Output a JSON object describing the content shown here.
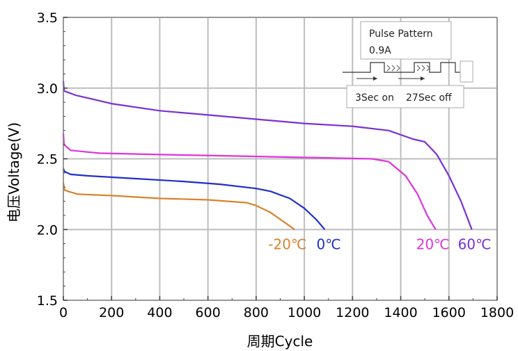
{
  "chart_data": {
    "type": "line",
    "xlabel": "周期Cycle",
    "ylabel": "电压Voltage(V)",
    "xlim": [
      0,
      1800
    ],
    "ylim": [
      1.5,
      3.5
    ],
    "xticks": [
      0,
      200,
      400,
      600,
      800,
      1000,
      1200,
      1400,
      1600,
      1800
    ],
    "yticks": [
      1.5,
      2.0,
      2.5,
      3.0,
      3.5
    ],
    "xtick_labels": [
      "0",
      "200",
      "400",
      "600",
      "800",
      "1000",
      "1200",
      "1400",
      "1600",
      "1800"
    ],
    "ytick_labels": [
      "1.5",
      "2.0",
      "2.5",
      "3.0",
      "3.5"
    ],
    "grid": true,
    "series": [
      {
        "name": "-20℃",
        "color": "#D9822B",
        "points": [
          [
            0,
            2.33
          ],
          [
            5,
            2.28
          ],
          [
            20,
            2.27
          ],
          [
            60,
            2.25
          ],
          [
            200,
            2.24
          ],
          [
            400,
            2.22
          ],
          [
            600,
            2.21
          ],
          [
            760,
            2.19
          ],
          [
            800,
            2.17
          ],
          [
            860,
            2.12
          ],
          [
            910,
            2.06
          ],
          [
            960,
            2.0
          ]
        ]
      },
      {
        "name": "0℃",
        "color": "#1F2FC7",
        "points": [
          [
            0,
            2.43
          ],
          [
            5,
            2.41
          ],
          [
            30,
            2.39
          ],
          [
            100,
            2.38
          ],
          [
            300,
            2.36
          ],
          [
            500,
            2.34
          ],
          [
            650,
            2.32
          ],
          [
            800,
            2.29
          ],
          [
            860,
            2.27
          ],
          [
            940,
            2.22
          ],
          [
            1000,
            2.15
          ],
          [
            1050,
            2.07
          ],
          [
            1085,
            2.0
          ]
        ]
      },
      {
        "name": "20℃",
        "color": "#DD33DD",
        "points": [
          [
            0,
            2.68
          ],
          [
            3,
            2.6
          ],
          [
            30,
            2.56
          ],
          [
            150,
            2.54
          ],
          [
            400,
            2.53
          ],
          [
            700,
            2.52
          ],
          [
            1000,
            2.51
          ],
          [
            1280,
            2.5
          ],
          [
            1350,
            2.48
          ],
          [
            1420,
            2.38
          ],
          [
            1470,
            2.25
          ],
          [
            1510,
            2.1
          ],
          [
            1545,
            2.0
          ]
        ]
      },
      {
        "name": "60℃",
        "color": "#7B2FD6",
        "points": [
          [
            0,
            3.05
          ],
          [
            3,
            2.98
          ],
          [
            50,
            2.95
          ],
          [
            200,
            2.89
          ],
          [
            400,
            2.84
          ],
          [
            600,
            2.81
          ],
          [
            800,
            2.78
          ],
          [
            1000,
            2.75
          ],
          [
            1200,
            2.73
          ],
          [
            1350,
            2.7
          ],
          [
            1450,
            2.64
          ],
          [
            1500,
            2.62
          ],
          [
            1550,
            2.53
          ],
          [
            1600,
            2.38
          ],
          [
            1650,
            2.2
          ],
          [
            1695,
            2.0
          ]
        ]
      }
    ],
    "inset": {
      "title": "Pulse Pattern",
      "current": "0.9A",
      "on_label": "3Sec on",
      "off_label": "27Sec off"
    }
  }
}
